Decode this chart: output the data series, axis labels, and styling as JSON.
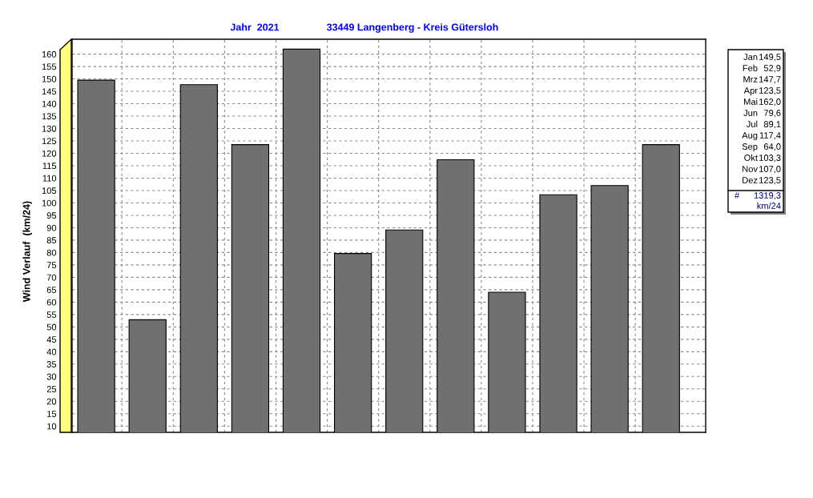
{
  "chart_data": {
    "type": "bar",
    "title": "Jahr  2021",
    "subtitle": "33449 Langenberg - Kreis Gütersloh",
    "ylabel": "Wind Verlauf  (km/24)",
    "categories": [
      null,
      null,
      null,
      null,
      null,
      null,
      null,
      null,
      null,
      null,
      null,
      null
    ],
    "values": [
      149.5,
      52.9,
      147.7,
      123.5,
      162.0,
      79.6,
      89.1,
      117.4,
      64.0,
      103.3,
      107.0,
      123.5
    ],
    "color": "#707070",
    "ylim": [
      7.5,
      166
    ],
    "yticks": [
      10,
      15,
      20,
      25,
      30,
      35,
      40,
      45,
      50,
      55,
      60,
      65,
      70,
      75,
      80,
      85,
      90,
      95,
      100,
      105,
      110,
      115,
      120,
      125,
      130,
      135,
      140,
      145,
      150,
      155,
      160
    ],
    "grid": true,
    "tick_labels": "y",
    "annotations": [
      "Jan",
      "149,5",
      "Feb",
      "52,9",
      "Mrz",
      "147,7",
      "Apr",
      "123,5",
      "Mai",
      "162,0",
      "Jun",
      "79,6",
      "Jul",
      "89,1",
      "Aug",
      "117,4",
      "Sep",
      "64,0",
      "Okt",
      "103,3",
      "Nov",
      "107,0",
      "Dez",
      "123,5",
      "#",
      "1319,3",
      "km/24"
    ]
  }
}
